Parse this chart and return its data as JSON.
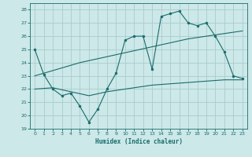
{
  "xlabel": "Humidex (Indice chaleur)",
  "bg_color": "#cce8e8",
  "grid_color": "#aacccc",
  "line_color": "#1a6b6b",
  "xlim": [
    -0.5,
    23.5
  ],
  "ylim": [
    19,
    28.5
  ],
  "yticks": [
    19,
    20,
    21,
    22,
    23,
    24,
    25,
    26,
    27,
    28
  ],
  "xticks": [
    0,
    1,
    2,
    3,
    4,
    5,
    6,
    7,
    8,
    9,
    10,
    11,
    12,
    13,
    14,
    15,
    16,
    17,
    18,
    19,
    20,
    21,
    22,
    23
  ],
  "line1_x": [
    0,
    1,
    2,
    3,
    4,
    5,
    6,
    7,
    8,
    9,
    10,
    11,
    12,
    13,
    14,
    15,
    16,
    17,
    18,
    19,
    20,
    21,
    22,
    23
  ],
  "line1_y": [
    25.0,
    23.1,
    22.0,
    21.5,
    21.7,
    20.7,
    19.5,
    20.5,
    22.0,
    23.2,
    25.7,
    26.0,
    26.0,
    23.5,
    27.5,
    27.7,
    27.9,
    27.0,
    26.8,
    27.0,
    26.0,
    24.8,
    23.0,
    22.8
  ],
  "line2_x": [
    0,
    1,
    2,
    3,
    4,
    5,
    6,
    7,
    8,
    9,
    10,
    11,
    12,
    13,
    14,
    15,
    16,
    17,
    18,
    19,
    20,
    21,
    22,
    23
  ],
  "line2_y": [
    23.0,
    23.2,
    23.4,
    23.6,
    23.8,
    24.0,
    24.15,
    24.3,
    24.45,
    24.6,
    24.75,
    24.9,
    25.05,
    25.2,
    25.35,
    25.5,
    25.65,
    25.8,
    25.9,
    26.0,
    26.1,
    26.2,
    26.3,
    26.4
  ],
  "line3_x": [
    0,
    1,
    2,
    3,
    4,
    5,
    6,
    7,
    8,
    9,
    10,
    11,
    12,
    13,
    14,
    15,
    16,
    17,
    18,
    19,
    20,
    21,
    22,
    23
  ],
  "line3_y": [
    22.0,
    22.05,
    22.1,
    21.95,
    21.8,
    21.65,
    21.5,
    21.65,
    21.8,
    21.9,
    22.0,
    22.1,
    22.2,
    22.3,
    22.35,
    22.4,
    22.45,
    22.5,
    22.55,
    22.6,
    22.65,
    22.7,
    22.7,
    22.7
  ]
}
